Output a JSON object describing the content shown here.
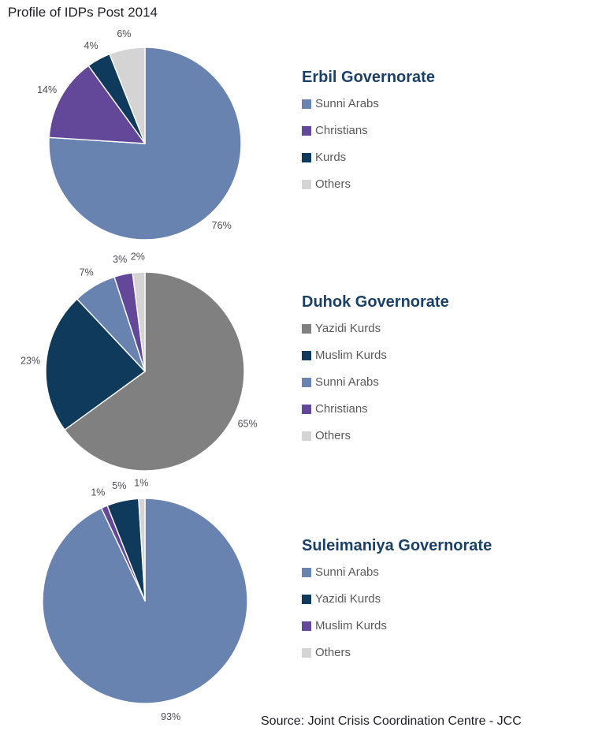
{
  "page_title": "Profile of IDPs Post 2014",
  "source_note": "Source: Joint Crisis Coordination Centre - JCC",
  "theme": {
    "background": "#FFFFFF",
    "chart_title_color": "#1B4068",
    "legend_text_color": "#595959",
    "percent_label_color": "#4C4C57",
    "series_colors": {
      "sunni_arabs": "#6883B0",
      "christians": "#63489A",
      "kurds_navy": "#0F3A5C",
      "yazidi_gray": "#808080",
      "others_light_gray": "#D4D4D4"
    }
  },
  "chart_data": [
    {
      "type": "pie",
      "title": "Erbil Governorate",
      "unit": "%",
      "start_angle_deg": 0,
      "direction": "clockwise",
      "slices": [
        {
          "label": "Sunni Arabs",
          "value": 76,
          "color": "#6883B0"
        },
        {
          "label": "Christians",
          "value": 14,
          "color": "#63489A"
        },
        {
          "label": "Kurds",
          "value": 4,
          "color": "#0F3A5C"
        },
        {
          "label": "Others",
          "value": 6,
          "color": "#D4D4D4"
        }
      ],
      "legend": [
        {
          "label": "Sunni Arabs",
          "color": "#6883B0"
        },
        {
          "label": "Christians",
          "color": "#63489A"
        },
        {
          "label": "Kurds",
          "color": "#0F3A5C"
        },
        {
          "label": "Others",
          "color": "#D4D4D4"
        }
      ]
    },
    {
      "type": "pie",
      "title": "Duhok Governorate",
      "unit": "%",
      "start_angle_deg": 0,
      "direction": "clockwise",
      "slices": [
        {
          "label": "Yazidi Kurds",
          "value": 65,
          "color": "#808080"
        },
        {
          "label": "Muslim Kurds",
          "value": 23,
          "color": "#0F3A5C"
        },
        {
          "label": "Sunni Arabs",
          "value": 7,
          "color": "#6883B0"
        },
        {
          "label": "Christians",
          "value": 3,
          "color": "#63489A"
        },
        {
          "label": "Others",
          "value": 2,
          "color": "#D4D4D4"
        }
      ],
      "legend": [
        {
          "label": "Yazidi Kurds",
          "color": "#808080"
        },
        {
          "label": "Muslim Kurds",
          "color": "#0F3A5C"
        },
        {
          "label": "Sunni Arabs",
          "color": "#6883B0"
        },
        {
          "label": "Christians",
          "color": "#63489A"
        },
        {
          "label": "Others",
          "color": "#D4D4D4"
        }
      ]
    },
    {
      "type": "pie",
      "title": "Suleimaniya Governorate",
      "unit": "%",
      "start_angle_deg": 0,
      "direction": "clockwise",
      "slices": [
        {
          "label": "Sunni Arabs",
          "value": 93,
          "color": "#6883B0"
        },
        {
          "label": "Muslim Kurds",
          "value": 1,
          "color": "#63489A"
        },
        {
          "label": "Yazidi Kurds",
          "value": 5,
          "color": "#0F3A5C"
        },
        {
          "label": "Others",
          "value": 1,
          "color": "#D4D4D4"
        }
      ],
      "legend": [
        {
          "label": "Sunni Arabs",
          "color": "#6883B0"
        },
        {
          "label": "Yazidi Kurds",
          "color": "#0F3A5C"
        },
        {
          "label": "Muslim Kurds",
          "color": "#63489A"
        },
        {
          "label": "Others",
          "color": "#D4D4D4"
        }
      ]
    }
  ]
}
